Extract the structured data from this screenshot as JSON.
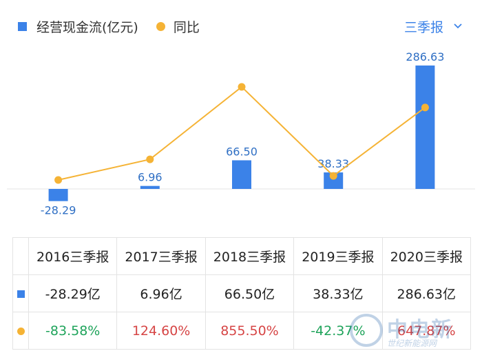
{
  "legend": {
    "bar_label": "经营现金流(亿元)",
    "line_label": "同比"
  },
  "period_selector": {
    "label": "三季报"
  },
  "colors": {
    "bar": "#3b82e8",
    "line": "#f5b335",
    "positive": "#d64545",
    "negative": "#1ea35a"
  },
  "chart_data": {
    "type": "bar",
    "categories": [
      "2016三季报",
      "2017三季报",
      "2018三季报",
      "2019三季报",
      "2020三季报"
    ],
    "series": [
      {
        "name": "经营现金流(亿元)",
        "type": "bar",
        "values": [
          -28.29,
          6.96,
          66.5,
          38.33,
          286.63
        ],
        "labels": [
          "-28.29",
          "6.96",
          "66.50",
          "38.33",
          "286.63"
        ]
      },
      {
        "name": "同比",
        "type": "line",
        "values": [
          -83.58,
          124.6,
          855.5,
          -42.37,
          647.87
        ]
      }
    ]
  },
  "table": {
    "headers": [
      "2016三季报",
      "2017三季报",
      "2018三季报",
      "2019三季报",
      "2020三季报"
    ],
    "cash_row": [
      "-28.29亿",
      "6.96亿",
      "66.50亿",
      "38.33亿",
      "286.63亿"
    ],
    "yoy_row": [
      "-83.58%",
      "124.60%",
      "855.50%",
      "-42.37%",
      "647.87%"
    ]
  },
  "watermark": {
    "text": "中电新",
    "subtext": "世纪新能源网"
  }
}
